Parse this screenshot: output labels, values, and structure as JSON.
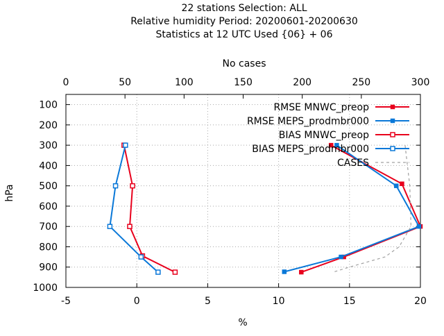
{
  "chart_data": {
    "type": "line",
    "title_lines": [
      "22 stations Selection: ALL",
      "Relative humidity  Period: 20200601-20200630",
      "Statistics at 12 UTC  Used {06} + 06"
    ],
    "xlabel": "%",
    "ylabel": "hPa",
    "x2label": "No cases",
    "xlim": [
      -5,
      20
    ],
    "x2lim": [
      0,
      300
    ],
    "ylim": [
      1000,
      50
    ],
    "y_inverted": true,
    "xticks": [
      "-5",
      "0",
      "5",
      "10",
      "15",
      "20"
    ],
    "x2ticks": [
      "0",
      "50",
      "100",
      "150",
      "200",
      "250",
      "300"
    ],
    "yticks": [
      "100",
      "200",
      "300",
      "400",
      "500",
      "600",
      "700",
      "800",
      "900",
      "1000"
    ],
    "grid": true,
    "legend_position": "top-right",
    "series": [
      {
        "name": "RMSE MNWC_preop",
        "color": "#e8001c",
        "marker": "filled-square",
        "points": [
          [
            13.7,
            300
          ],
          [
            18.7,
            490
          ],
          [
            20.0,
            700
          ],
          [
            14.6,
            850
          ],
          [
            11.6,
            925
          ]
        ]
      },
      {
        "name": "RMSE MEPS_prodmbr000",
        "color": "#0a78d8",
        "marker": "filled-square",
        "points": [
          [
            14.1,
            300
          ],
          [
            18.3,
            500
          ],
          [
            19.9,
            700
          ],
          [
            14.4,
            850
          ],
          [
            10.4,
            923
          ]
        ]
      },
      {
        "name": "BIAS MNWC_preop",
        "color": "#e8001c",
        "marker": "open-square",
        "points": [
          [
            -0.9,
            300
          ],
          [
            -0.3,
            500
          ],
          [
            -0.5,
            700
          ],
          [
            0.4,
            845
          ],
          [
            2.7,
            925
          ]
        ]
      },
      {
        "name": "BIAS MEPS_prodmbr000",
        "color": "#0a78d8",
        "marker": "open-square",
        "points": [
          [
            -0.8,
            300
          ],
          [
            -1.5,
            500
          ],
          [
            -1.9,
            700
          ],
          [
            0.3,
            850
          ],
          [
            1.5,
            925
          ]
        ]
      },
      {
        "name": "CASES",
        "color": "#a0a0a0",
        "dashed": true,
        "axis": "x2",
        "points": [
          [
            287,
            300
          ],
          [
            291,
            500
          ],
          [
            292,
            700
          ],
          [
            282,
            800
          ],
          [
            270,
            850
          ],
          [
            240,
            900
          ],
          [
            226,
            925
          ]
        ]
      }
    ]
  }
}
